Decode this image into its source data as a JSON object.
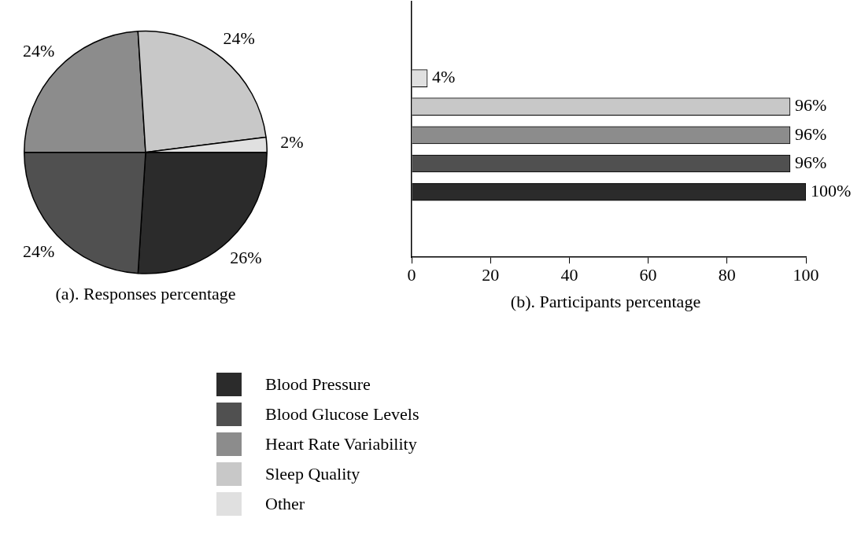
{
  "chart_data": [
    {
      "type": "pie",
      "title": "(a). Responses percentage",
      "legend": "bottom",
      "categories": [
        "Blood Pressure",
        "Blood Glucose Levels",
        "Heart Rate Variability",
        "Sleep Quality",
        "Other"
      ],
      "values": [
        26,
        24,
        24,
        24,
        2
      ],
      "colors": [
        "#2b2b2b",
        "#505050",
        "#8c8c8c",
        "#c8c8c8",
        "#e0e0e0"
      ],
      "value_labels": [
        "26%",
        "24%",
        "24%",
        "24%",
        "2%"
      ]
    },
    {
      "type": "bar",
      "orientation": "horizontal",
      "title": "(b). Participants percentage",
      "categories": [
        null,
        null,
        null,
        null,
        null
      ],
      "values": [
        4,
        96,
        96,
        96,
        100
      ],
      "colors": [
        "#e0e0e0",
        "#c8c8c8",
        "#8c8c8c",
        "#505050",
        "#2b2b2b"
      ],
      "value_labels": [
        "4%",
        "96%",
        "96%",
        "96%",
        "100%"
      ],
      "xlim": [
        0,
        100
      ],
      "xticks": [
        0,
        20,
        40,
        60,
        80,
        100
      ]
    }
  ]
}
